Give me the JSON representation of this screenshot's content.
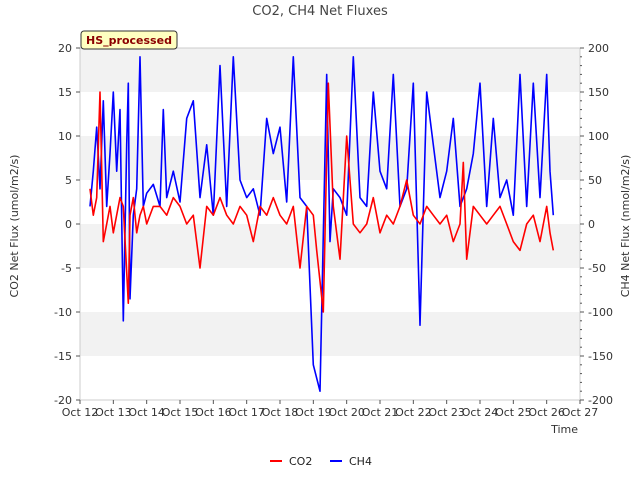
{
  "chart_data": {
    "type": "line",
    "title": "CO2, CH4 Net Fluxes",
    "xlabel": "Time",
    "ylabel_left": "CO2 Net Flux (umol/m2/s)",
    "ylabel_right": "CH4 Net Flux (nmol/m2/s)",
    "badge": "HS_processed",
    "x_ticks": [
      "Oct 12",
      "Oct 13",
      "Oct 14",
      "Oct 15",
      "Oct 16",
      "Oct 17",
      "Oct 18",
      "Oct 19",
      "Oct 20",
      "Oct 21",
      "Oct 22",
      "Oct 23",
      "Oct 24",
      "Oct 25",
      "Oct 26",
      "Oct 27"
    ],
    "xlim": [
      12,
      27
    ],
    "ylim_left": [
      -20,
      20
    ],
    "ylim_right": [
      -200,
      200
    ],
    "y_ticks_left": [
      -20,
      -15,
      -10,
      -5,
      0,
      5,
      10,
      15,
      20
    ],
    "y_ticks_right": [
      -200,
      -150,
      -100,
      -50,
      0,
      50,
      100,
      150,
      200
    ],
    "grid_bands": true,
    "legend_position": "bottom-center",
    "series": [
      {
        "name": "CO2",
        "color": "#ff0000",
        "axis": "left",
        "x": [
          12.3,
          12.4,
          12.5,
          12.6,
          12.7,
          12.8,
          12.9,
          13.0,
          13.2,
          13.3,
          13.45,
          13.5,
          13.6,
          13.7,
          13.8,
          13.9,
          14.0,
          14.2,
          14.4,
          14.6,
          14.8,
          15.0,
          15.2,
          15.4,
          15.6,
          15.8,
          16.0,
          16.2,
          16.4,
          16.6,
          16.8,
          17.0,
          17.2,
          17.4,
          17.6,
          17.8,
          18.0,
          18.2,
          18.4,
          18.6,
          18.8,
          19.0,
          19.1,
          19.3,
          19.45,
          19.6,
          19.8,
          20.0,
          20.2,
          20.4,
          20.6,
          20.8,
          21.0,
          21.2,
          21.4,
          21.6,
          21.8,
          22.0,
          22.2,
          22.4,
          22.6,
          22.8,
          23.0,
          23.2,
          23.4,
          23.5,
          23.6,
          23.8,
          24.0,
          24.2,
          24.4,
          24.6,
          24.8,
          25.0,
          25.2,
          25.4,
          25.6,
          25.8,
          26.0,
          26.1,
          26.2
        ],
        "y": [
          4,
          1,
          3,
          15,
          -2,
          0,
          2,
          -1,
          3,
          2,
          -9,
          1,
          3,
          -1,
          1,
          2,
          0,
          2,
          2,
          1,
          3,
          2,
          0,
          1,
          -5,
          2,
          1,
          3,
          1,
          0,
          2,
          1,
          -2,
          2,
          1,
          3,
          1,
          0,
          2,
          -5,
          2,
          1,
          -3,
          -10,
          16,
          2,
          -4,
          10,
          0,
          -1,
          0,
          3,
          -1,
          1,
          0,
          2,
          5,
          1,
          0,
          2,
          1,
          0,
          1,
          -2,
          0,
          7,
          -4,
          2,
          1,
          0,
          1,
          2,
          0,
          -2,
          -3,
          0,
          1,
          -2,
          2,
          -1,
          -3
        ]
      },
      {
        "name": "CH4",
        "color": "#0000ff",
        "axis": "right",
        "x": [
          12.3,
          12.4,
          12.5,
          12.6,
          12.7,
          12.8,
          12.9,
          13.0,
          13.1,
          13.2,
          13.3,
          13.4,
          13.45,
          13.5,
          13.6,
          13.7,
          13.8,
          13.9,
          14.0,
          14.2,
          14.4,
          14.5,
          14.6,
          14.8,
          15.0,
          15.2,
          15.4,
          15.6,
          15.8,
          16.0,
          16.2,
          16.4,
          16.6,
          16.8,
          17.0,
          17.2,
          17.4,
          17.6,
          17.8,
          18.0,
          18.2,
          18.4,
          18.6,
          18.8,
          19.0,
          19.2,
          19.4,
          19.5,
          19.6,
          19.8,
          20.0,
          20.2,
          20.4,
          20.6,
          20.8,
          21.0,
          21.2,
          21.4,
          21.6,
          21.8,
          22.0,
          22.2,
          22.4,
          22.6,
          22.8,
          23.0,
          23.2,
          23.4,
          23.6,
          23.8,
          24.0,
          24.2,
          24.4,
          24.6,
          24.8,
          25.0,
          25.2,
          25.4,
          25.6,
          25.8,
          26.0,
          26.1,
          26.2
        ],
        "y": [
          20,
          60,
          110,
          40,
          140,
          20,
          80,
          150,
          60,
          130,
          -110,
          90,
          160,
          -85,
          10,
          40,
          190,
          20,
          35,
          45,
          20,
          130,
          30,
          60,
          25,
          120,
          140,
          30,
          90,
          10,
          180,
          20,
          190,
          50,
          30,
          40,
          10,
          120,
          80,
          110,
          25,
          190,
          30,
          20,
          -160,
          -190,
          170,
          -20,
          40,
          30,
          10,
          190,
          30,
          20,
          150,
          60,
          40,
          170,
          20,
          40,
          160,
          -115,
          150,
          90,
          30,
          60,
          120,
          20,
          40,
          80,
          160,
          20,
          120,
          30,
          50,
          10,
          170,
          20,
          160,
          30,
          170,
          60,
          10
        ]
      }
    ]
  }
}
